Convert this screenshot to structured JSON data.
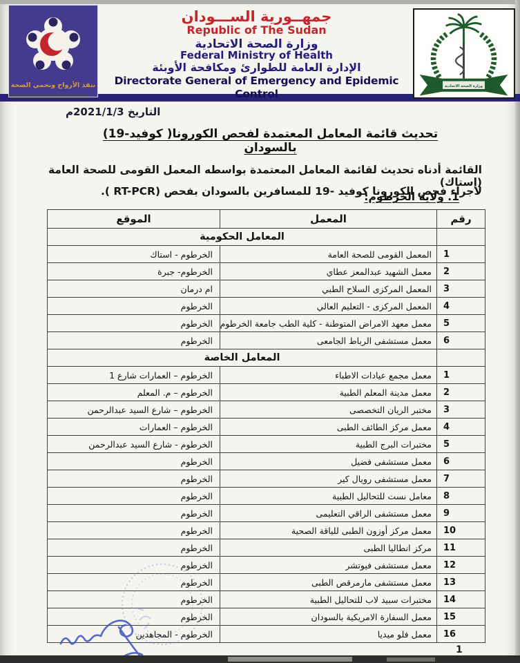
{
  "letterhead": {
    "country_ar": "جمهــورية الســـودان",
    "country_en": "Republic of The Sudan",
    "ministry_ar": "وزارة الصحة الاتحادية",
    "ministry_en": "Federal Ministry of Health",
    "directorate_ar": "الإدارة العامة للطوارئ ومكافحة الأوبئة",
    "directorate_en": "Directorate General of Emergency and Epidemic Control",
    "left_logo_motto": "ننقذ الأرواح ونحمي الصحة",
    "right_logo_ribbon": "وزارة الصحة الاتحادية"
  },
  "date_line": "التاريخ 2021/1/3م",
  "title": "تحديث قائمة المعامل المعتمدة  لفحص الكورونا( كوفيد-19) بالسودان",
  "intro": {
    "line1": "القائمة أدناه تحديث لقائمة المعامل المعتمدة بواسطه المعمل القومى للصحة العامة (إستاك)",
    "line2": "لاجراء فحص الكورونا كوفيد -19 للمسافرين بالسودان  بفحص (RT-PCR )."
  },
  "section_heading": "1. ولاية الخرطوم:",
  "table": {
    "col_no": "رقم",
    "col_lab": "المعمل",
    "col_location": "الموقع",
    "groups": [
      {
        "title": "المعامل الحكومية",
        "rows": [
          {
            "no": "1",
            "lab": "المعمل القومى للصحة العامة",
            "location": "الخرطوم - استاك"
          },
          {
            "no": "2",
            "lab": "معمل الشهيد عبدالمعز عطاي",
            "location": "الخرطوم- جبرة"
          },
          {
            "no": "3",
            "lab": "المعمل المركزى السلاح الطبي",
            "location": "ام درمان"
          },
          {
            "no": "4",
            "lab": "المعمل المركزى - التعليم العالي",
            "location": "الخرطوم"
          },
          {
            "no": "5",
            "lab": "معمل معهد الامراض المتوطنة - كلية الطب جامعة الخرطوم",
            "location": "الخرطوم"
          },
          {
            "no": "6",
            "lab": "معمل مستشفى الرباط الجامعى",
            "location": "الخرطوم"
          }
        ]
      },
      {
        "title": "المعامل الخاصة",
        "rows": [
          {
            "no": "1",
            "lab": "معمل مجمع عيادات الاطباء",
            "location": "الخرطوم – العمارات شارع 1"
          },
          {
            "no": "2",
            "lab": "معمل مدينة المعلم الطبية",
            "location": "الخرطوم – م. المعلم"
          },
          {
            "no": "3",
            "lab": "مختبر الريان التخصصى",
            "location": "الخرطوم – شارع السيد عبدالرحمن"
          },
          {
            "no": "4",
            "lab": "معمل مركز الطائف الطبى",
            "location": "الخرطوم – العمارات"
          },
          {
            "no": "5",
            "lab": "مختبرات البرج الطبية",
            "location": "الخرطوم - شارع السيد  عبدالرحمن"
          },
          {
            "no": "6",
            "lab": "معمل مستشفى فضيل",
            "location": "الخرطوم"
          },
          {
            "no": "7",
            "lab": "معمل مستشفى رويال كير",
            "location": "الخرطوم"
          },
          {
            "no": "8",
            "lab": "معامل نست للتحاليل الطبية",
            "location": "الخرطوم"
          },
          {
            "no": "9",
            "lab": "معمل مستشفى الراقي التعليمى",
            "location": "الخرطوم"
          },
          {
            "no": "10",
            "lab": "معمل مركز أوزون الطبى للياقة الصحية",
            "location": "الخرطوم"
          },
          {
            "no": "11",
            "lab": "مركز انطاليا الطبى",
            "location": "الخرطوم"
          },
          {
            "no": "12",
            "lab": "معمل مستشفى فيوتشر",
            "location": "الخرطوم"
          },
          {
            "no": "13",
            "lab": "معمل مستشفى مارمرقص الطبى",
            "location": "الخرطوم"
          },
          {
            "no": "14",
            "lab": "مختبرات سبيد لاب للتحاليل الطبية",
            "location": "الخرطوم"
          },
          {
            "no": "15",
            "lab": "معمل السفارة الامريكية بالسودان",
            "location": "الخرطوم"
          },
          {
            "no": "16",
            "lab": "معمل فلو ميديا",
            "location": "الخرطوم - المجاهدين"
          }
        ]
      }
    ]
  },
  "footer": {
    "page_number": "1"
  },
  "colors": {
    "header_red": "#c3262c",
    "header_navy": "#231d7a",
    "navy_bar": "#292377",
    "logo_purple": "#443a8e",
    "motto_orange": "#d89b3e",
    "emblem_green": "#20592c",
    "table_border": "#3f3f3f",
    "signature_blue": "#3d55c4",
    "paper": "#f6f4ef"
  }
}
